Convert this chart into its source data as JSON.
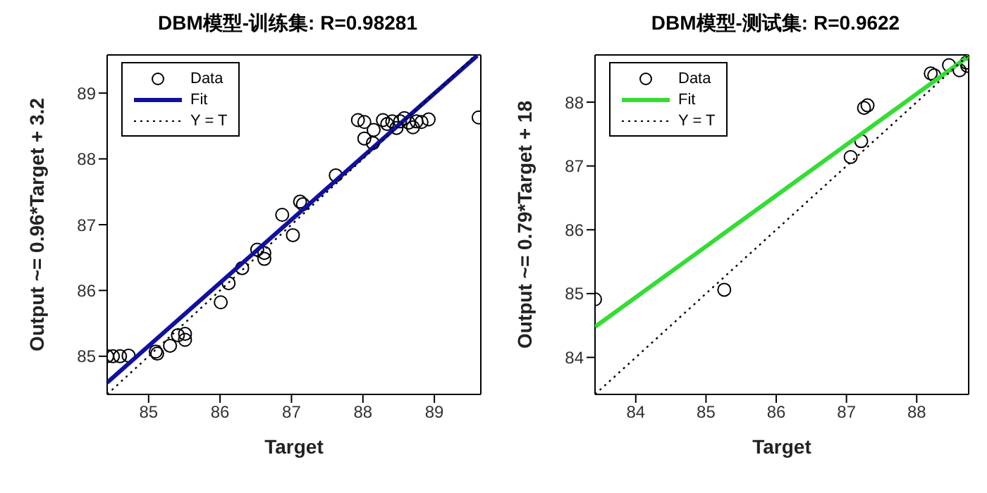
{
  "chart_data": [
    {
      "type": "scatter",
      "title": "DBM模型-训练集: R=0.98281",
      "xlabel": "Target",
      "ylabel": "Output ~= 0.96*Target + 3.2",
      "xlim": [
        84.42,
        89.65
      ],
      "ylim": [
        84.42,
        89.58
      ],
      "xticks": [
        85,
        86,
        87,
        88,
        89
      ],
      "yticks": [
        85,
        86,
        87,
        88,
        89
      ],
      "legend": "top left",
      "series": [
        {
          "name": "Data",
          "type": "scatter",
          "marker": "circle",
          "color": "#000000",
          "x": [
            84.42,
            84.5,
            84.6,
            84.72,
            85.1,
            85.12,
            85.3,
            85.41,
            85.51,
            85.51,
            86.01,
            86.12,
            86.31,
            86.52,
            86.62,
            86.62,
            86.87,
            87.02,
            87.12,
            87.16,
            87.62,
            87.93,
            88.02,
            88.02,
            88.14,
            88.15,
            88.28,
            88.34,
            88.41,
            88.47,
            88.52,
            88.58,
            88.64,
            88.7,
            88.75,
            88.82,
            88.92,
            89.62
          ],
          "values": [
            85.0,
            85.0,
            85.0,
            85.01,
            85.07,
            85.04,
            85.16,
            85.32,
            85.34,
            85.25,
            85.82,
            86.11,
            86.34,
            86.62,
            86.57,
            86.48,
            87.15,
            86.84,
            87.35,
            87.31,
            87.75,
            88.59,
            88.56,
            88.31,
            88.24,
            88.44,
            88.59,
            88.53,
            88.57,
            88.47,
            88.57,
            88.62,
            88.55,
            88.48,
            88.57,
            88.56,
            88.6,
            88.63
          ]
        },
        {
          "name": "Fit",
          "type": "line",
          "marker": "none",
          "line_style": "solid",
          "color": "#1010a0",
          "x": [
            84.42,
            89.6
          ],
          "values": [
            84.6,
            89.57
          ]
        },
        {
          "name": "Y = T",
          "type": "line",
          "marker": "none",
          "line_style": "dotted",
          "color": "#000000",
          "x": [
            84.42,
            89.58
          ],
          "values": [
            84.42,
            89.58
          ]
        }
      ]
    },
    {
      "type": "scatter",
      "title": "DBM模型-测试集: R=0.9622",
      "xlabel": "Target",
      "ylabel": "Output ~= 0.79*Target + 18",
      "xlim": [
        83.42,
        88.74
      ],
      "ylim": [
        83.42,
        88.74
      ],
      "xticks": [
        84,
        85,
        86,
        87,
        88
      ],
      "yticks": [
        84,
        85,
        86,
        87,
        88
      ],
      "legend": "top left",
      "series": [
        {
          "name": "Data",
          "type": "scatter",
          "marker": "circle",
          "color": "#000000",
          "x": [
            83.42,
            85.26,
            87.06,
            87.21,
            87.25,
            87.3,
            88.2,
            88.25,
            88.46,
            88.61,
            88.71,
            88.72
          ],
          "values": [
            84.91,
            85.06,
            87.14,
            87.39,
            87.91,
            87.95,
            88.45,
            88.42,
            88.58,
            88.5,
            88.62,
            88.57
          ]
        },
        {
          "name": "Fit",
          "type": "line",
          "marker": "none",
          "line_style": "solid",
          "color": "#33dd33",
          "x": [
            83.42,
            88.74
          ],
          "values": [
            84.48,
            88.72
          ]
        },
        {
          "name": "Y = T",
          "type": "line",
          "marker": "none",
          "line_style": "dotted",
          "color": "#000000",
          "x": [
            83.42,
            88.74
          ],
          "values": [
            83.42,
            88.74
          ]
        }
      ]
    }
  ]
}
